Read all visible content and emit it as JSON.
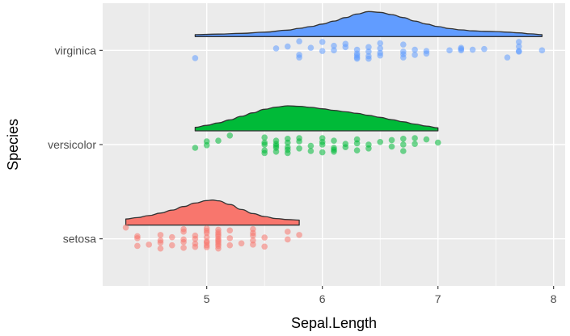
{
  "chart_data": {
    "type": "raincloud",
    "xlabel": "Sepal.Length",
    "ylabel": "Species",
    "xlim": [
      4.1,
      8.1
    ],
    "x_ticks": [
      5,
      6,
      7,
      8
    ],
    "grid": true,
    "background": "#EBEBEB",
    "series": [
      {
        "name": "setosa",
        "color": "#F8766D",
        "range": [
          4.3,
          5.8
        ],
        "density": [
          [
            4.3,
            0.24
          ],
          [
            4.4,
            0.3
          ],
          [
            4.5,
            0.38
          ],
          [
            4.6,
            0.48
          ],
          [
            4.7,
            0.6
          ],
          [
            4.8,
            0.74
          ],
          [
            4.9,
            0.88
          ],
          [
            5.0,
            0.98
          ],
          [
            5.05,
            1.0
          ],
          [
            5.1,
            0.97
          ],
          [
            5.2,
            0.82
          ],
          [
            5.3,
            0.62
          ],
          [
            5.4,
            0.46
          ],
          [
            5.5,
            0.34
          ],
          [
            5.6,
            0.26
          ],
          [
            5.7,
            0.22
          ],
          [
            5.8,
            0.2
          ]
        ],
        "points": [
          [
            4.3,
            -0.35
          ],
          [
            4.4,
            -0.08
          ],
          [
            4.4,
            0.22
          ],
          [
            4.4,
            -0.02
          ],
          [
            4.5,
            0.18
          ],
          [
            4.6,
            0.05
          ],
          [
            4.6,
            0.3
          ],
          [
            4.6,
            -0.12
          ],
          [
            4.6,
            0.12
          ],
          [
            4.7,
            -0.05
          ],
          [
            4.7,
            0.2
          ],
          [
            4.8,
            0.02
          ],
          [
            4.8,
            0.28
          ],
          [
            4.8,
            -0.22
          ],
          [
            4.8,
            0.1
          ],
          [
            4.8,
            -0.3
          ],
          [
            4.9,
            0.15
          ],
          [
            4.9,
            -0.1
          ],
          [
            4.9,
            0.25
          ],
          [
            4.9,
            0.0
          ],
          [
            5.0,
            -0.18
          ],
          [
            5.0,
            0.08
          ],
          [
            5.0,
            0.26
          ],
          [
            5.0,
            -0.32
          ],
          [
            5.0,
            0.12
          ],
          [
            5.0,
            -0.05
          ],
          [
            5.0,
            0.2
          ],
          [
            5.0,
            -0.25
          ],
          [
            5.1,
            0.05
          ],
          [
            5.1,
            -0.2
          ],
          [
            5.1,
            0.16
          ],
          [
            5.1,
            -0.08
          ],
          [
            5.1,
            0.3
          ],
          [
            5.1,
            0.0
          ],
          [
            5.1,
            -0.14
          ],
          [
            5.1,
            0.22
          ],
          [
            5.1,
            -0.28
          ],
          [
            5.1,
            0.1
          ],
          [
            5.2,
            -0.02
          ],
          [
            5.2,
            0.2
          ],
          [
            5.2,
            -0.26
          ],
          [
            5.3,
            0.14
          ],
          [
            5.4,
            -0.1
          ],
          [
            5.4,
            0.18
          ],
          [
            5.4,
            -0.3
          ],
          [
            5.4,
            0.05
          ],
          [
            5.4,
            -0.18
          ],
          [
            5.5,
            0.24
          ],
          [
            5.5,
            -0.04
          ],
          [
            5.7,
            0.02
          ],
          [
            5.7,
            -0.22
          ],
          [
            5.8,
            -0.12
          ]
        ]
      },
      {
        "name": "versicolor",
        "color": "#00BA38",
        "range": [
          4.9,
          7.0
        ],
        "density": [
          [
            4.9,
            0.14
          ],
          [
            5.0,
            0.22
          ],
          [
            5.1,
            0.32
          ],
          [
            5.2,
            0.44
          ],
          [
            5.3,
            0.58
          ],
          [
            5.4,
            0.72
          ],
          [
            5.5,
            0.86
          ],
          [
            5.6,
            0.95
          ],
          [
            5.7,
            1.0
          ],
          [
            5.8,
            0.98
          ],
          [
            5.9,
            0.94
          ],
          [
            6.0,
            0.88
          ],
          [
            6.1,
            0.82
          ],
          [
            6.2,
            0.76
          ],
          [
            6.3,
            0.7
          ],
          [
            6.4,
            0.62
          ],
          [
            6.5,
            0.54
          ],
          [
            6.6,
            0.45
          ],
          [
            6.7,
            0.36
          ],
          [
            6.8,
            0.27
          ],
          [
            6.9,
            0.19
          ],
          [
            7.0,
            0.12
          ]
        ],
        "points": [
          [
            4.9,
            0.1
          ],
          [
            5.0,
            -0.1
          ],
          [
            5.0,
            0.02
          ],
          [
            5.1,
            -0.12
          ],
          [
            5.2,
            -0.28
          ],
          [
            5.5,
            -0.06
          ],
          [
            5.5,
            0.26
          ],
          [
            5.5,
            0.18
          ],
          [
            5.5,
            0.0
          ],
          [
            5.5,
            -0.22
          ],
          [
            5.6,
            0.04
          ],
          [
            5.6,
            -0.12
          ],
          [
            5.6,
            0.22
          ],
          [
            5.6,
            0.1
          ],
          [
            5.6,
            -0.02
          ],
          [
            5.7,
            0.08
          ],
          [
            5.7,
            -0.18
          ],
          [
            5.7,
            0.16
          ],
          [
            5.7,
            -0.06
          ],
          [
            5.7,
            0.26
          ],
          [
            5.8,
            -0.1
          ],
          [
            5.8,
            0.12
          ],
          [
            5.8,
            -0.2
          ],
          [
            5.9,
            0.04
          ],
          [
            5.9,
            0.2
          ],
          [
            6.0,
            -0.08
          ],
          [
            6.0,
            0.24
          ],
          [
            6.0,
            0.0
          ],
          [
            6.0,
            -0.2
          ],
          [
            6.1,
            0.1
          ],
          [
            6.1,
            0.16
          ],
          [
            6.1,
            -0.12
          ],
          [
            6.1,
            0.22
          ],
          [
            6.2,
            -0.02
          ],
          [
            6.2,
            0.08
          ],
          [
            6.3,
            -0.16
          ],
          [
            6.3,
            0.18
          ],
          [
            6.3,
            -0.04
          ],
          [
            6.4,
            0.12
          ],
          [
            6.4,
            0.0
          ],
          [
            6.5,
            -0.08
          ],
          [
            6.6,
            0.06
          ],
          [
            6.6,
            -0.14
          ],
          [
            6.7,
            0.2
          ],
          [
            6.7,
            0.0
          ],
          [
            6.7,
            -0.18
          ],
          [
            6.8,
            -0.02
          ],
          [
            6.8,
            -0.2
          ],
          [
            6.9,
            -0.16
          ],
          [
            7.0,
            -0.06
          ]
        ]
      },
      {
        "name": "virginica",
        "color": "#619CFF",
        "range": [
          4.9,
          7.9
        ],
        "density": [
          [
            4.9,
            0.08
          ],
          [
            5.1,
            0.1
          ],
          [
            5.3,
            0.13
          ],
          [
            5.5,
            0.18
          ],
          [
            5.7,
            0.26
          ],
          [
            5.8,
            0.33
          ],
          [
            5.9,
            0.4
          ],
          [
            6.0,
            0.5
          ],
          [
            6.1,
            0.62
          ],
          [
            6.2,
            0.76
          ],
          [
            6.3,
            0.9
          ],
          [
            6.4,
            1.0
          ],
          [
            6.5,
            0.97
          ],
          [
            6.6,
            0.88
          ],
          [
            6.7,
            0.76
          ],
          [
            6.8,
            0.62
          ],
          [
            6.9,
            0.5
          ],
          [
            7.0,
            0.4
          ],
          [
            7.1,
            0.32
          ],
          [
            7.2,
            0.27
          ],
          [
            7.3,
            0.23
          ],
          [
            7.4,
            0.21
          ],
          [
            7.5,
            0.2
          ],
          [
            7.6,
            0.18
          ],
          [
            7.7,
            0.15
          ],
          [
            7.8,
            0.11
          ],
          [
            7.9,
            0.08
          ]
        ],
        "points": [
          [
            4.9,
            0.24
          ],
          [
            5.6,
            -0.06
          ],
          [
            5.7,
            -0.12
          ],
          [
            5.8,
            0.14
          ],
          [
            5.8,
            0.22
          ],
          [
            5.8,
            -0.28
          ],
          [
            5.9,
            -0.08
          ],
          [
            6.0,
            -0.26
          ],
          [
            6.0,
            0.02
          ],
          [
            6.1,
            -0.14
          ],
          [
            6.1,
            0.0
          ],
          [
            6.2,
            -0.1
          ],
          [
            6.2,
            -0.2
          ],
          [
            6.3,
            0.16
          ],
          [
            6.3,
            0.26
          ],
          [
            6.3,
            -0.02
          ],
          [
            6.3,
            0.1
          ],
          [
            6.3,
            0.22
          ],
          [
            6.4,
            0.04
          ],
          [
            6.4,
            0.26
          ],
          [
            6.4,
            0.18
          ],
          [
            6.4,
            -0.1
          ],
          [
            6.5,
            -0.06
          ],
          [
            6.5,
            0.08
          ],
          [
            6.5,
            0.16
          ],
          [
            6.5,
            -0.22
          ],
          [
            6.7,
            -0.18
          ],
          [
            6.7,
            0.04
          ],
          [
            6.7,
            0.12
          ],
          [
            6.7,
            0.22
          ],
          [
            6.8,
            -0.02
          ],
          [
            6.8,
            0.14
          ],
          [
            6.9,
            0.1
          ],
          [
            6.9,
            0.02
          ],
          [
            7.1,
            0.0
          ],
          [
            7.2,
            -0.08
          ],
          [
            7.2,
            -0.04
          ],
          [
            7.2,
            0.0
          ],
          [
            7.3,
            -0.02
          ],
          [
            7.4,
            -0.04
          ],
          [
            7.6,
            0.22
          ],
          [
            7.7,
            -0.26
          ],
          [
            7.7,
            0.02
          ],
          [
            7.7,
            -0.12
          ],
          [
            7.7,
            0.04
          ],
          [
            7.9,
            0.0
          ]
        ]
      }
    ]
  }
}
